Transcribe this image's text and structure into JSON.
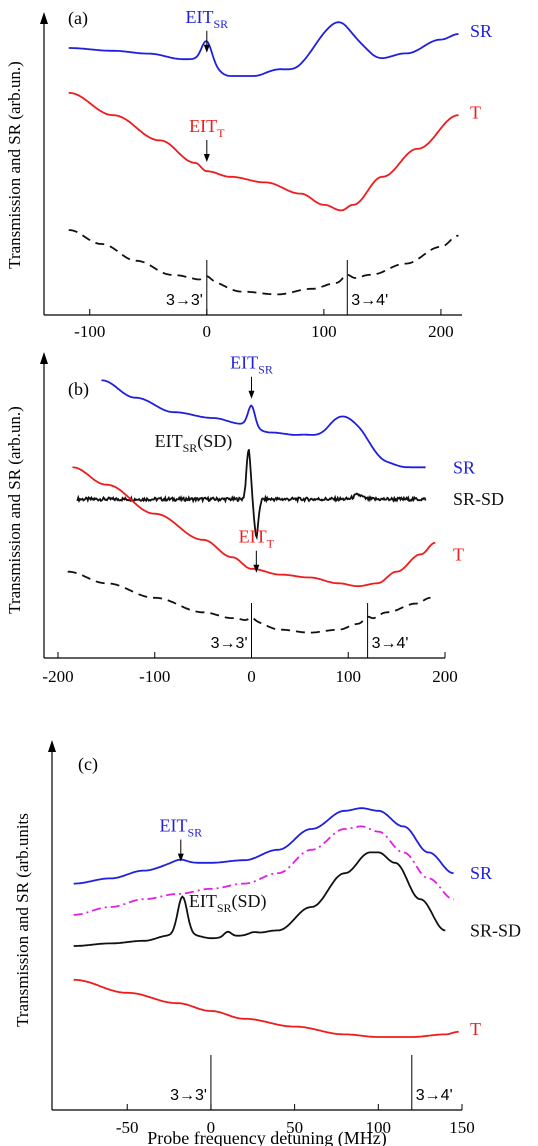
{
  "colors": {
    "SR": "#1f1fdd",
    "T": "#ee1c1c",
    "SR-SD": "#111111",
    "dashed": "#111111",
    "magenta": "#e020e0",
    "axis": "#000000"
  },
  "chart_data": [
    {
      "type": "line",
      "panel_label": "(a)",
      "ylabel": "Transmission and SR (arb.un.)",
      "xlabel": "",
      "xlim": [
        -122,
        218
      ],
      "ylim": [
        0,
        1
      ],
      "xticks": [
        -100,
        0,
        100,
        200
      ],
      "xtick_labels": [
        "-100",
        "0",
        "100",
        "200"
      ],
      "markers": [
        {
          "x": 0,
          "label": "3→3'"
        },
        {
          "x": 120,
          "label": "3→4'"
        }
      ],
      "series": [
        {
          "name": "SR",
          "style": "solid",
          "color": "SR",
          "peaks": [
            [
              0,
              0.07,
              6
            ],
            [
              110,
              0.18,
              25
            ]
          ],
          "x": [
            -118,
            -80,
            -50,
            -20,
            -5,
            20,
            40,
            60,
            80,
            100,
            120,
            140,
            170,
            200,
            215
          ],
          "y": [
            0.9,
            0.89,
            0.88,
            0.86,
            0.86,
            0.8,
            0.8,
            0.82,
            0.8,
            0.8,
            0.82,
            0.84,
            0.88,
            0.93,
            0.95
          ]
        },
        {
          "name": "T",
          "style": "solid",
          "color": "T",
          "peaks": [],
          "x": [
            -118,
            -80,
            -40,
            -10,
            0,
            20,
            50,
            80,
            100,
            115,
            125,
            150,
            180,
            215
          ],
          "y": [
            0.74,
            0.66,
            0.57,
            0.49,
            0.46,
            0.44,
            0.42,
            0.38,
            0.34,
            0.32,
            0.34,
            0.44,
            0.54,
            0.66
          ]
        },
        {
          "name": "",
          "style": "dashed",
          "color": "dashed",
          "peaks": [
            [
              0,
              0.015,
              4
            ],
            [
              120,
              0.02,
              5
            ]
          ],
          "x": [
            -118,
            -90,
            -60,
            -30,
            0,
            30,
            60,
            90,
            110,
            120,
            140,
            170,
            200,
            215
          ],
          "y": [
            0.25,
            0.2,
            0.14,
            0.09,
            0.07,
            0.03,
            0.02,
            0.04,
            0.06,
            0.07,
            0.09,
            0.13,
            0.19,
            0.23
          ]
        }
      ],
      "annotations": [
        {
          "text": "EIT",
          "sub": "SR",
          "x": 0,
          "y": 0.99,
          "color": "SR"
        },
        {
          "text": "EIT",
          "sub": "T",
          "x": 0,
          "y": 0.6,
          "color": "T"
        }
      ],
      "series_labels": [
        {
          "text": "SR",
          "y": 0.96,
          "color": "SR"
        },
        {
          "text": "T",
          "y": 0.67,
          "color": "T"
        }
      ]
    },
    {
      "type": "line",
      "panel_label": "(b)",
      "ylabel": "Transmission and SR (arb.un.)",
      "xlabel": "",
      "xlim": [
        -200,
        200
      ],
      "ylim": [
        0,
        1
      ],
      "xticks": [
        -200,
        -100,
        0,
        100,
        200
      ],
      "xtick_labels": [
        "-200",
        "-100",
        "0",
        "100",
        "200"
      ],
      "markers": [
        {
          "x": 0,
          "label": "3→3'"
        },
        {
          "x": 120,
          "label": "3→4'"
        }
      ],
      "series": [
        {
          "name": "SR",
          "style": "solid",
          "color": "SR",
          "peaks": [
            [
              0,
              0.07,
              5
            ],
            [
              100,
              0.12,
              25
            ]
          ],
          "x": [
            -155,
            -120,
            -80,
            -40,
            -10,
            20,
            50,
            80,
            110,
            140,
            160,
            180
          ],
          "y": [
            0.93,
            0.87,
            0.82,
            0.8,
            0.78,
            0.75,
            0.74,
            0.71,
            0.67,
            0.64,
            0.63,
            0.63
          ]
        },
        {
          "name": "SR-SD",
          "style": "solid",
          "color": "SR-SD",
          "wiggle": true,
          "peaks": [
            [
              -3,
              0.17,
              3
            ],
            [
              5,
              -0.13,
              3
            ],
            [
              110,
              0.015,
              6
            ]
          ],
          "x": [
            -180,
            180
          ],
          "y": [
            0.52,
            0.52
          ]
        },
        {
          "name": "T",
          "style": "solid",
          "color": "T",
          "peaks": [],
          "x": [
            -185,
            -150,
            -100,
            -50,
            -20,
            0,
            30,
            60,
            90,
            110,
            130,
            150,
            175,
            190
          ],
          "y": [
            0.63,
            0.57,
            0.47,
            0.38,
            0.32,
            0.28,
            0.26,
            0.25,
            0.23,
            0.22,
            0.23,
            0.27,
            0.33,
            0.37
          ]
        },
        {
          "name": "",
          "style": "dashed",
          "color": "dashed",
          "peaks": [
            [
              0,
              0.012,
              4
            ],
            [
              120,
              0.015,
              5
            ]
          ],
          "x": [
            -190,
            -150,
            -100,
            -50,
            -20,
            0,
            30,
            60,
            90,
            110,
            120,
            140,
            170,
            185
          ],
          "y": [
            0.27,
            0.23,
            0.18,
            0.13,
            0.11,
            0.1,
            0.07,
            0.06,
            0.07,
            0.09,
            0.1,
            0.13,
            0.16,
            0.18
          ]
        }
      ],
      "annotations": [
        {
          "text": "EIT",
          "sub": "SR",
          "x": 0,
          "y": 0.97,
          "color": "SR"
        },
        {
          "text": "EIT",
          "sub": "SR",
          "tail": "(SD)",
          "x": -60,
          "y": 0.7,
          "color": "SR-SD"
        },
        {
          "text": "EIT",
          "sub": "T",
          "x": 5,
          "y": 0.37,
          "color": "T"
        }
      ],
      "series_labels": [
        {
          "text": "SR",
          "y": 0.63,
          "color": "SR"
        },
        {
          "text": "SR-SD",
          "y": 0.52,
          "color": "SR-SD"
        },
        {
          "text": "T",
          "y": 0.33,
          "color": "T"
        }
      ]
    },
    {
      "type": "line",
      "panel_label": "(c)",
      "ylabel": "Transmission and SR (arb.units",
      "xlabel": "Probe frequency detuning (MHz)",
      "xlim": [
        -83,
        150
      ],
      "ylim": [
        0,
        1
      ],
      "xticks": [
        -50,
        0,
        50,
        100,
        150
      ],
      "xtick_labels": [
        "-50",
        "0",
        "50",
        "100",
        "150"
      ],
      "markers": [
        {
          "x": 0,
          "label": "3→3'"
        },
        {
          "x": 120,
          "label": "3→4'"
        }
      ],
      "series": [
        {
          "name": "SR",
          "style": "solid",
          "color": "SR",
          "peaks": [
            [
              -18,
              0.012,
              5
            ]
          ],
          "x": [
            -82,
            -60,
            -40,
            -20,
            0,
            20,
            40,
            60,
            80,
            90,
            100,
            115,
            130,
            145
          ],
          "y": [
            0.64,
            0.66,
            0.69,
            0.72,
            0.72,
            0.73,
            0.77,
            0.85,
            0.92,
            0.93,
            0.92,
            0.86,
            0.76,
            0.68
          ]
        },
        {
          "name": "",
          "style": "dashdot",
          "color": "magenta",
          "peaks": [],
          "x": [
            -82,
            -60,
            -40,
            -20,
            0,
            20,
            40,
            60,
            80,
            90,
            100,
            115,
            130,
            145
          ],
          "y": [
            0.52,
            0.55,
            0.58,
            0.6,
            0.62,
            0.64,
            0.68,
            0.77,
            0.85,
            0.86,
            0.84,
            0.76,
            0.66,
            0.58
          ]
        },
        {
          "name": "SR-SD",
          "style": "solid",
          "color": "SR-SD",
          "peaks": [
            [
              -17,
              0.15,
              4
            ],
            [
              10,
              0.02,
              3
            ],
            [
              25,
              0.01,
              4
            ]
          ],
          "x": [
            -82,
            -60,
            -40,
            -25,
            -10,
            0,
            20,
            40,
            60,
            80,
            95,
            100,
            110,
            125,
            140
          ],
          "y": [
            0.4,
            0.41,
            0.42,
            0.44,
            0.44,
            0.43,
            0.44,
            0.46,
            0.55,
            0.68,
            0.76,
            0.76,
            0.72,
            0.58,
            0.46
          ]
        },
        {
          "name": "T",
          "style": "solid",
          "color": "T",
          "peaks": [],
          "x": [
            -82,
            -50,
            -20,
            0,
            20,
            50,
            80,
            100,
            120,
            140,
            148
          ],
          "y": [
            0.27,
            0.22,
            0.18,
            0.15,
            0.12,
            0.09,
            0.06,
            0.05,
            0.05,
            0.06,
            0.07
          ]
        }
      ],
      "annotations": [
        {
          "text": "EIT",
          "sub": "SR",
          "x": -18,
          "y": 0.84,
          "color": "SR"
        },
        {
          "text": "EIT",
          "sub": "SR",
          "tail": "(SD)",
          "x": 10,
          "y": 0.55,
          "color": "SR-SD"
        }
      ],
      "series_labels": [
        {
          "text": "SR",
          "y": 0.68,
          "color": "SR"
        },
        {
          "text": "SR-SD",
          "y": 0.46,
          "color": "SR-SD"
        },
        {
          "text": "T",
          "y": 0.08,
          "color": "T"
        }
      ]
    }
  ]
}
